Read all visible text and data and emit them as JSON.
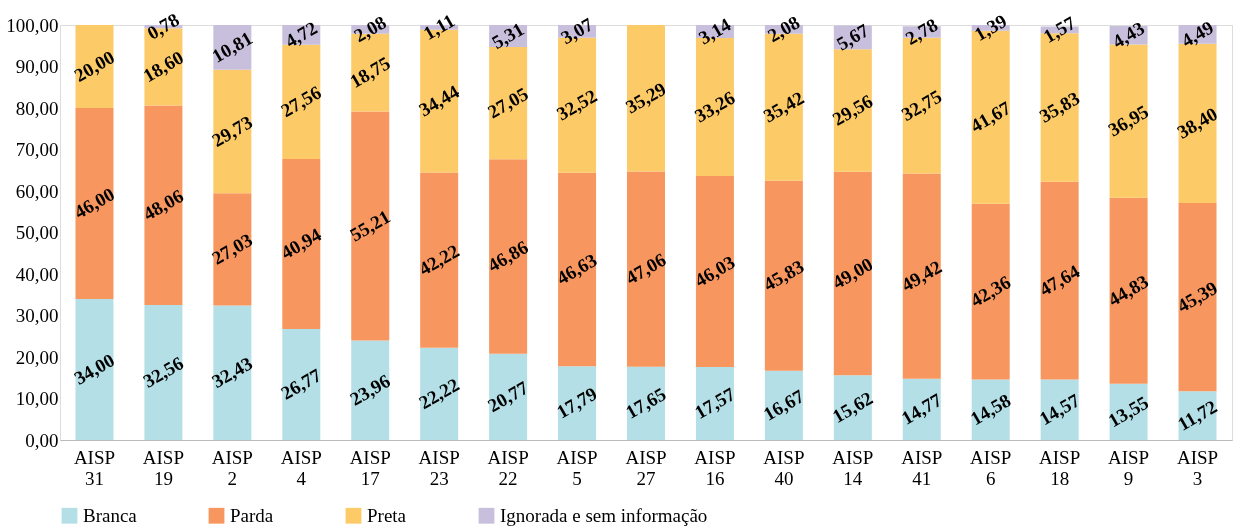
{
  "chart_data": {
    "type": "bar",
    "stacked": true,
    "categories": [
      "AISP\n31",
      "AISP\n19",
      "AISP\n2",
      "AISP\n4",
      "AISP\n17",
      "AISP\n23",
      "AISP\n22",
      "AISP\n5",
      "AISP\n27",
      "AISP\n16",
      "AISP\n40",
      "AISP\n14",
      "AISP\n41",
      "AISP\n6",
      "AISP\n18",
      "AISP\n9",
      "AISP\n3"
    ],
    "ylim": [
      0,
      100
    ],
    "yticks": [
      {
        "value": 0,
        "label": "0,00"
      },
      {
        "value": 10,
        "label": "10,00"
      },
      {
        "value": 20,
        "label": "20,00"
      },
      {
        "value": 30,
        "label": "30,00"
      },
      {
        "value": 40,
        "label": "40,00"
      },
      {
        "value": 50,
        "label": "50,00"
      },
      {
        "value": 60,
        "label": "60,00"
      },
      {
        "value": 70,
        "label": "70,00"
      },
      {
        "value": 80,
        "label": "80,00"
      },
      {
        "value": 90,
        "label": "90,00"
      },
      {
        "value": 100,
        "label": "100,00"
      }
    ],
    "legend": "bottom",
    "series": [
      {
        "name": "Branca",
        "color": "#b4dfe6",
        "values": [
          34.0,
          32.56,
          32.43,
          26.77,
          23.96,
          22.22,
          20.77,
          17.79,
          17.65,
          17.57,
          16.67,
          15.62,
          14.77,
          14.58,
          14.57,
          13.55,
          11.72
        ],
        "value_labels": [
          "34,00",
          "32,56",
          "32,43",
          "26,77",
          "23,96",
          "22,22",
          "20,77",
          "17,79",
          "17,65",
          "17,57",
          "16,67",
          "15,62",
          "14,77",
          "14,58",
          "14,57",
          "13,55",
          "11,72"
        ]
      },
      {
        "name": "Parda",
        "color": "#f7975f",
        "values": [
          46.0,
          48.06,
          27.03,
          40.94,
          55.21,
          42.22,
          46.86,
          46.63,
          47.06,
          46.03,
          45.83,
          49.0,
          49.42,
          42.36,
          47.64,
          44.83,
          45.39
        ],
        "value_labels": [
          "46,00",
          "48,06",
          "27,03",
          "40,94",
          "55,21",
          "42,22",
          "46,86",
          "46,63",
          "47,06",
          "46,03",
          "45,83",
          "49,00",
          "49,42",
          "42,36",
          "47,64",
          "44,83",
          "45,39"
        ]
      },
      {
        "name": "Preta",
        "color": "#fdca68",
        "values": [
          20.0,
          18.6,
          29.73,
          27.56,
          18.75,
          34.44,
          27.05,
          32.52,
          35.29,
          33.26,
          35.42,
          29.56,
          32.75,
          41.67,
          35.83,
          36.95,
          38.4
        ],
        "value_labels": [
          "20,00",
          "18,60",
          "29,73",
          "27,56",
          "18,75",
          "34,44",
          "27,05",
          "32,52",
          "35,29",
          "33,26",
          "35,42",
          "29,56",
          "32,75",
          "41,67",
          "35,83",
          "36,95",
          "38,40"
        ]
      },
      {
        "name": "Ignorada e sem informação",
        "color": "#c8bfdc",
        "values": [
          null,
          0.78,
          10.81,
          4.72,
          2.08,
          1.11,
          5.31,
          3.07,
          null,
          3.14,
          2.08,
          5.67,
          2.78,
          1.39,
          1.57,
          4.43,
          4.49
        ],
        "value_labels": [
          null,
          "0,78",
          "10,81",
          "4,72",
          "2,08",
          "1,11",
          "5,31",
          "3,07",
          null,
          "3,14",
          "2,08",
          "5,67",
          "2,78",
          "1,39",
          "1,57",
          "4,43",
          "4,49"
        ]
      }
    ]
  }
}
